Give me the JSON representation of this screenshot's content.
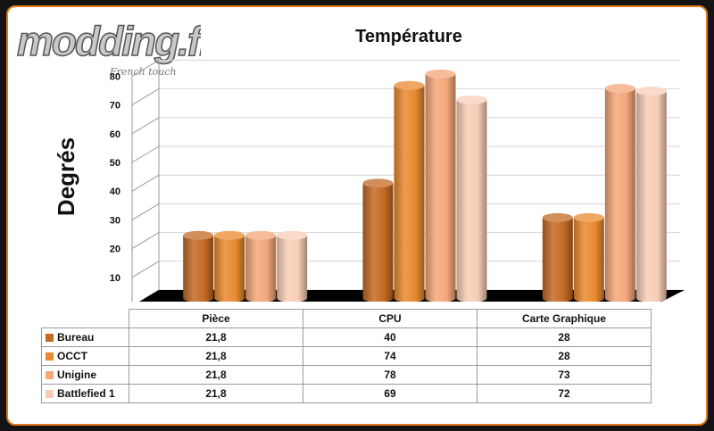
{
  "logo": {
    "main": "modding.fr",
    "tagline": "French touch"
  },
  "chart_data": {
    "type": "bar",
    "title": "Température",
    "ylabel": "Degrés",
    "xlabel": "",
    "ylim": [
      0,
      80
    ],
    "yticks": [
      "0",
      "10",
      "20",
      "30",
      "40",
      "50",
      "60",
      "70",
      "80"
    ],
    "categories": [
      "Pièce",
      "CPU",
      "Carte Graphique"
    ],
    "series": [
      {
        "name": "Bureau",
        "values": [
          21.8,
          40,
          28
        ],
        "labels": [
          "21,8",
          "40",
          "28"
        ],
        "color": "#c46a24"
      },
      {
        "name": "OCCT",
        "values": [
          21.8,
          74,
          28
        ],
        "labels": [
          "21,8",
          "74",
          "28"
        ],
        "color": "#e98a30"
      },
      {
        "name": "Unigine",
        "values": [
          21.8,
          78,
          73
        ],
        "labels": [
          "21,8",
          "78",
          "73"
        ],
        "color": "#f4a77a"
      },
      {
        "name": "Battlefied 1",
        "values": [
          21.8,
          69,
          72
        ],
        "labels": [
          "21,8",
          "69",
          "72"
        ],
        "color": "#f8cdb6"
      }
    ],
    "grid": true,
    "legend": "table"
  }
}
